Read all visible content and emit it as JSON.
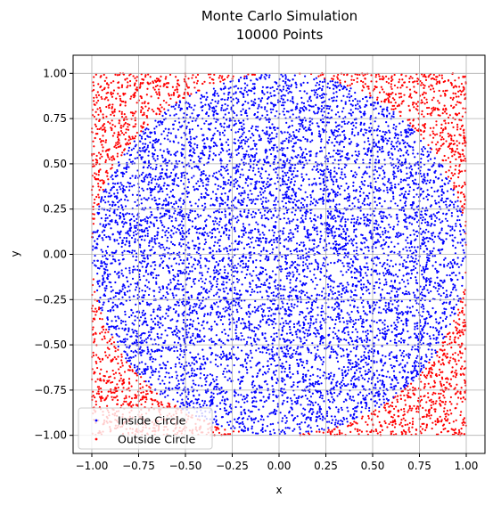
{
  "chart_data": {
    "type": "scatter",
    "title": [
      "Monte Carlo Simulation",
      "10000 Points"
    ],
    "xlabel": "x",
    "ylabel": "y",
    "xlim": [
      -1.1,
      1.1
    ],
    "ylim": [
      -1.1,
      1.1
    ],
    "x_ticks": [
      -1.0,
      -0.75,
      -0.5,
      -0.25,
      0.0,
      0.25,
      0.5,
      0.75,
      1.0
    ],
    "y_ticks": [
      -1.0,
      -0.75,
      -0.5,
      -0.25,
      0.0,
      0.25,
      0.5,
      0.75,
      1.0
    ],
    "x_tick_labels": [
      "−1.00",
      "−0.75",
      "−0.50",
      "−0.25",
      "0.00",
      "0.25",
      "0.50",
      "0.75",
      "1.00"
    ],
    "y_tick_labels": [
      "−1.00",
      "−0.75",
      "−0.50",
      "−0.25",
      "0.00",
      "0.25",
      "0.50",
      "0.75",
      "1.00"
    ],
    "grid": true,
    "legend_position": "lower-left",
    "total_points": 10000,
    "sampling_region": {
      "x": [
        -1,
        1
      ],
      "y": [
        -1,
        1
      ]
    },
    "circle": {
      "center": [
        0,
        0
      ],
      "radius": 1
    },
    "series": [
      {
        "name": "Inside Circle",
        "color": "#0000ff",
        "condition": "x^2 + y^2 <= 1"
      },
      {
        "name": "Outside Circle",
        "color": "#ff0000",
        "condition": "x^2 + y^2 > 1"
      }
    ]
  }
}
